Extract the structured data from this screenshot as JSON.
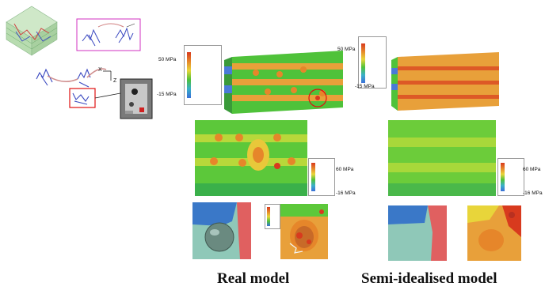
{
  "stress_labels": {
    "top_left_max": "50 MPa",
    "top_left_min": "-15 MPa",
    "top_right_max": "50 MPa",
    "top_right_min": "-15 MPa",
    "mid_left_max": "60 MPa",
    "mid_left_min": "-16 MPa",
    "mid_right_max": "60 MPa",
    "mid_right_min": "-16 MPa"
  },
  "axis_labels": {
    "x": "X",
    "z": "Z"
  },
  "captions": {
    "real": "Real model",
    "semi": "Semi-idealised model"
  },
  "colors": {
    "contour_green": "#4fc23a",
    "contour_yellow": "#e8d53a",
    "contour_orange": "#e6862a",
    "contour_red": "#d83a1e",
    "contour_blue": "#3a6fd8",
    "highlight_red": "#e01010",
    "magenta_frame": "#d030c0"
  }
}
